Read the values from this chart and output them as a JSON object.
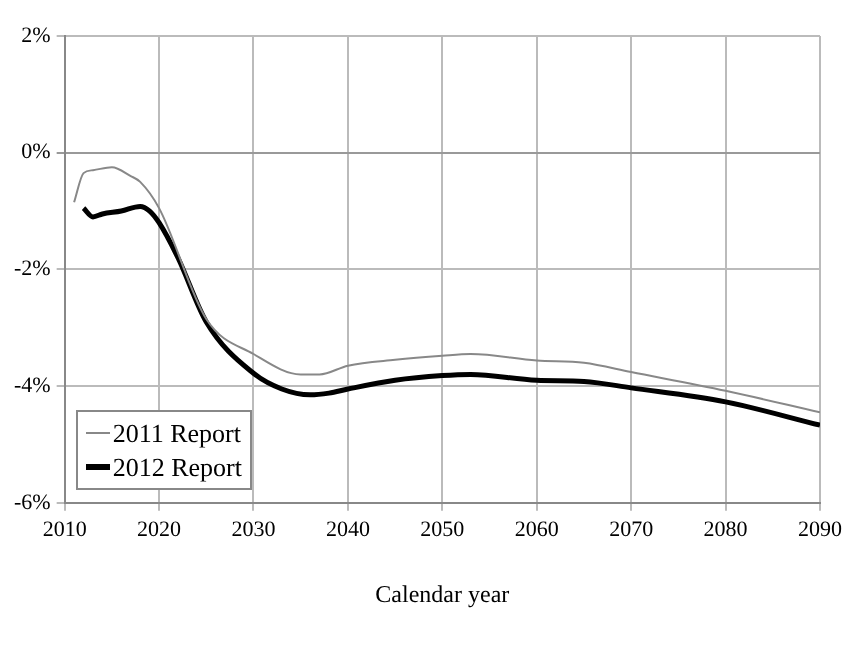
{
  "chart_data": {
    "type": "line",
    "xlabel": "Calendar year",
    "xlim": [
      2010,
      2090
    ],
    "xticks": [
      2010,
      2020,
      2030,
      2040,
      2050,
      2060,
      2070,
      2080,
      2090
    ],
    "ylim": [
      -6,
      2
    ],
    "yticks": [
      {
        "value": -6,
        "label": "-6%"
      },
      {
        "value": -4,
        "label": "-4%"
      },
      {
        "value": -2,
        "label": "-2%"
      },
      {
        "value": 0,
        "label": "0%"
      },
      {
        "value": 2,
        "label": "2%"
      }
    ],
    "grid": true,
    "legend": "bottom left",
    "marker": "none",
    "line_style": "solid",
    "series": [
      {
        "name": "2011 Report",
        "color": "#888888",
        "x": [
          2011,
          2012,
          2013,
          2015,
          2017,
          2018,
          2020,
          2025,
          2030,
          2035,
          2037,
          2040,
          2045,
          2050,
          2053,
          2060,
          2065,
          2070,
          2080,
          2090
        ],
        "values": [
          -0.85,
          -0.35,
          -0.3,
          -0.25,
          -0.4,
          -0.5,
          -0.95,
          -2.85,
          -3.45,
          -3.8,
          -3.8,
          -3.65,
          -3.55,
          -3.48,
          -3.45,
          -3.56,
          -3.6,
          -3.76,
          -4.08,
          -4.45
        ]
      },
      {
        "name": "2012 Report",
        "color": "#000000",
        "x": [
          2012,
          2013,
          2014,
          2016,
          2018,
          2019,
          2020,
          2022,
          2025,
          2030,
          2033,
          2036,
          2038,
          2040,
          2045,
          2050,
          2053,
          2060,
          2065,
          2070,
          2080,
          2090
        ],
        "values": [
          -0.95,
          -1.1,
          -1.05,
          -1.0,
          -0.92,
          -1.0,
          -1.2,
          -1.8,
          -2.9,
          -3.78,
          -4.05,
          -4.15,
          -4.12,
          -4.05,
          -3.9,
          -3.82,
          -3.8,
          -3.9,
          -3.92,
          -4.03,
          -4.27,
          -4.67
        ]
      }
    ]
  }
}
